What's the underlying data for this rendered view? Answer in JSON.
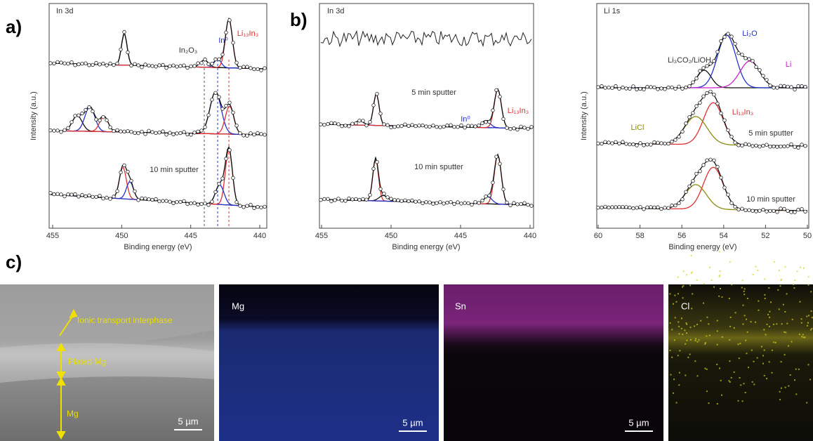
{
  "figure": {
    "panel_labels": [
      "a)",
      "b)",
      "c)"
    ],
    "panel_a": {
      "title": "In 3d",
      "y_label": "Intensity (a.u.)",
      "x_label": "Binding energy (eV)",
      "x_ticks": [
        "455",
        "450",
        "445",
        "440"
      ],
      "annotations": [
        "In₂O₃",
        "In⁰",
        "Li₁₃In₃",
        "10 min sputter"
      ]
    },
    "panel_b_in": {
      "title": "In 3d",
      "x_label": "Binding energy (eV)",
      "x_ticks": [
        "455",
        "450",
        "445",
        "440"
      ],
      "annotations": [
        "5 min sputter",
        "In⁰",
        "Li₁₃In₃",
        "10 min sputter"
      ]
    },
    "panel_b_li": {
      "title": "Li 1s",
      "y_label": "Intensity (a.u.)",
      "x_label": "Binding energy (eV)",
      "x_ticks": [
        "60",
        "58",
        "56",
        "54",
        "52",
        "50"
      ],
      "annotations": [
        "Li₃CO₂/LiOH",
        "Li₂O",
        "Li",
        "LiCl",
        "Li₁₃In₃",
        "5 min sputter",
        "10 min sputter"
      ]
    },
    "panel_c": {
      "sem_annotations": [
        "Ionic transport interphase",
        "Plated Mg",
        "Mg"
      ],
      "maps": [
        "Mg",
        "Sn",
        "Cl"
      ],
      "scale_bars": [
        "5 µm",
        "5 µm",
        "5 µm"
      ]
    }
  }
}
